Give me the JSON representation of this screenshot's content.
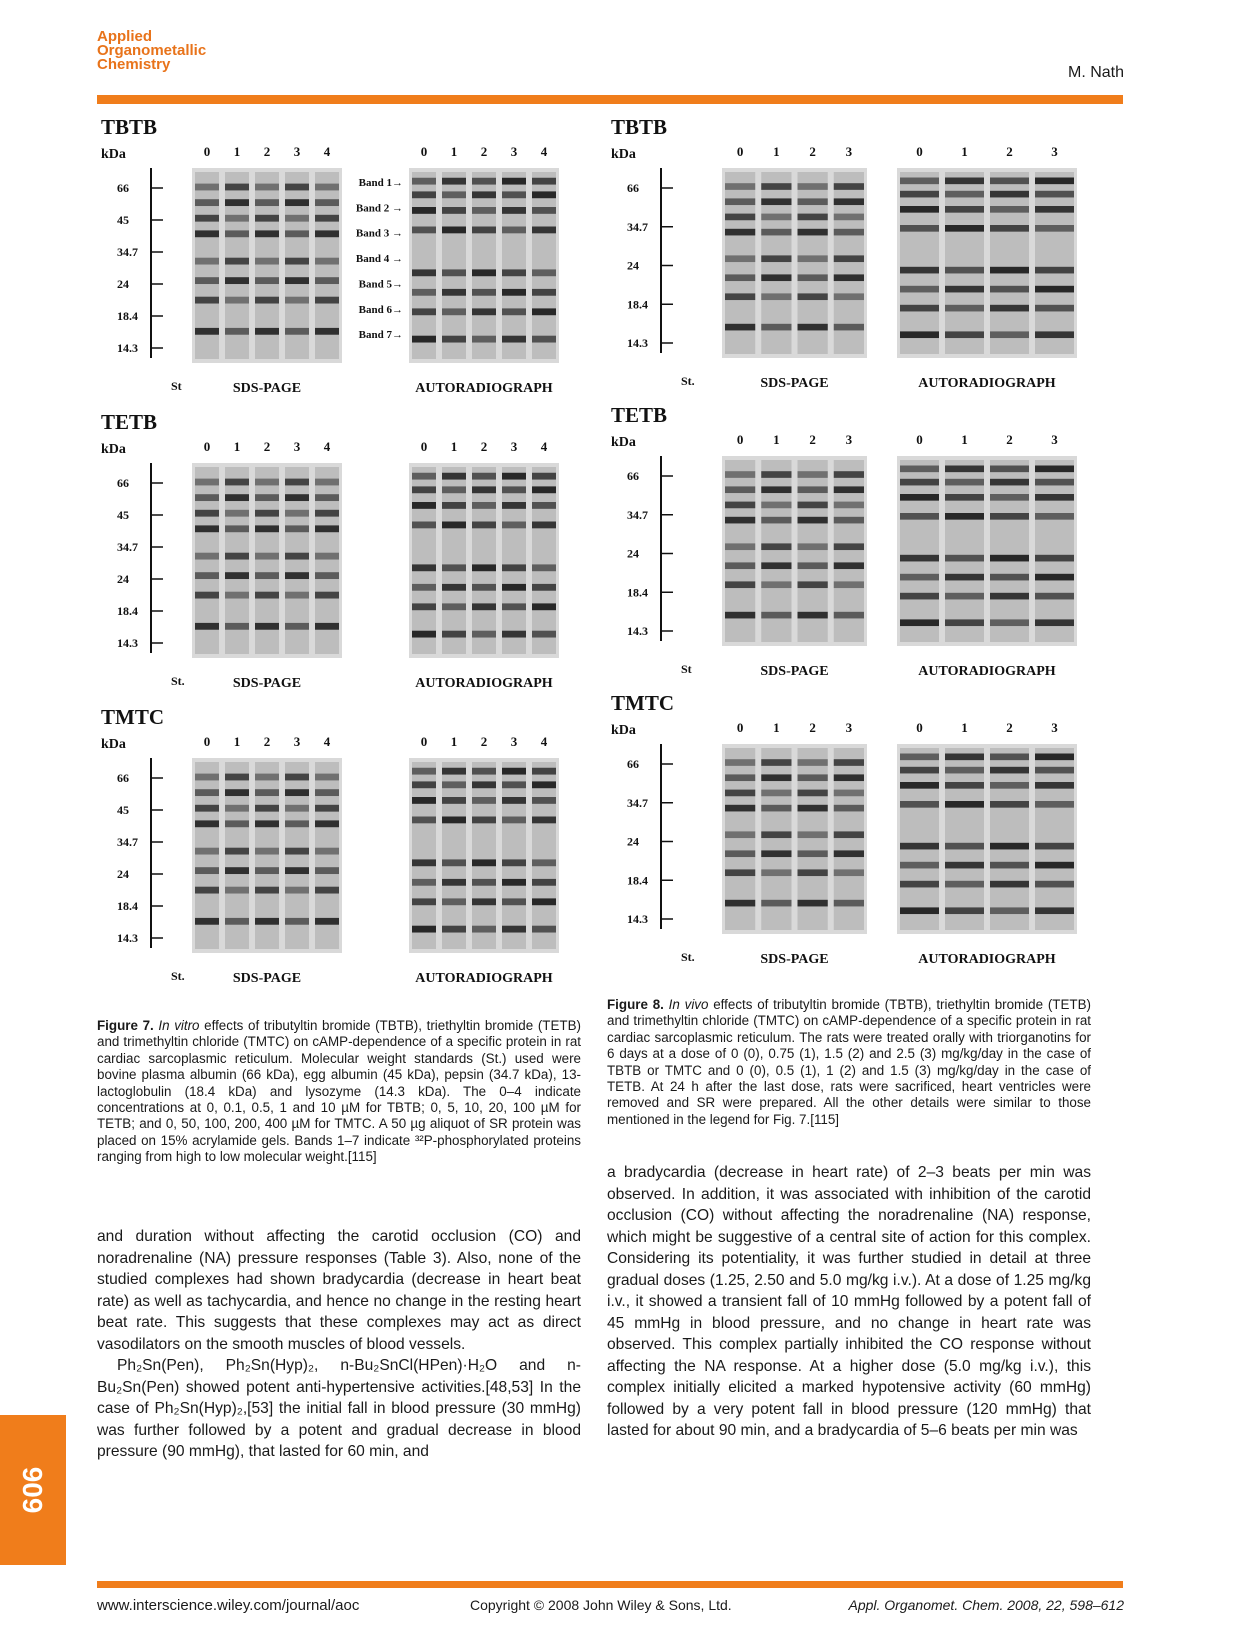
{
  "header": {
    "journal_logo": [
      "Applied",
      "Organometallic",
      "Chemistry"
    ],
    "author": "M. Nath"
  },
  "page_number": "606",
  "footer": {
    "url": "www.interscience.wiley.com/journal/aoc",
    "copyright": "Copyright © 2008 John Wiley & Sons, Ltd.",
    "citation": "Appl. Organomet. Chem. 2008, 22, 598–612"
  },
  "figure7": {
    "panels": [
      {
        "compound": "TBTB",
        "kda": "kDa",
        "markers": [
          "66",
          "45",
          "34.7",
          "24",
          "18.4",
          "14.3"
        ],
        "lanes": [
          "0",
          "1",
          "2",
          "3",
          "4"
        ],
        "bands": [
          "Band 1→",
          "Band 2 →",
          "Band 3 →",
          "Band 4 →",
          "Band 5→",
          "Band 6→",
          "Band 7→"
        ],
        "st": "St",
        "sds": "SDS-PAGE",
        "auto": "AUTORADIOGRAPH"
      },
      {
        "compound": "TETB",
        "kda": "kDa",
        "markers": [
          "66",
          "45",
          "34.7",
          "24",
          "18.4",
          "14.3"
        ],
        "lanes": [
          "0",
          "1",
          "2",
          "3",
          "4"
        ],
        "bands": [],
        "st": "St.",
        "sds": "SDS-PAGE",
        "auto": "AUTORADIOGRAPH"
      },
      {
        "compound": "TMTC",
        "kda": "kDa",
        "markers": [
          "66",
          "45",
          "34.7",
          "24",
          "18.4",
          "14.3"
        ],
        "lanes": [
          "0",
          "1",
          "2",
          "3",
          "4"
        ],
        "bands": [],
        "st": "St.",
        "sds": "SDS-PAGE",
        "auto": "AUTORADIOGRAPH"
      }
    ],
    "caption_label": "Figure 7.",
    "caption_invitro": "In vitro",
    "caption_text": " effects of tributyltin bromide (TBTB), triethyltin bromide (TETB) and trimethyltin chloride (TMTC) on cAMP-dependence of a specific protein in rat cardiac sarcoplasmic reticulum. Molecular weight standards (St.) used were bovine plasma albumin (66 kDa), egg albumin (45 kDa), pepsin (34.7 kDa), 13-lactoglobulin (18.4 kDa) and lysozyme (14.3 kDa). The 0–4 indicate concentrations at 0, 0.1, 0.5, 1 and 10 µM for TBTB; 0, 5, 10, 20, 100 µM for TETB; and 0, 50, 100, 200, 400 µM for TMTC. A 50 µg aliquot of SR protein was placed on 15% acrylamide gels. Bands 1–7 indicate ³²P-phosphorylated proteins ranging from high to low molecular weight.[115]"
  },
  "figure8": {
    "panels": [
      {
        "compound": "TBTB",
        "kda": "kDa",
        "markers": [
          "66",
          "34.7",
          "24",
          "18.4",
          "14.3"
        ],
        "lanes": [
          "0",
          "1",
          "2",
          "3"
        ],
        "st": "St.",
        "sds": "SDS-PAGE",
        "auto": "AUTORADIOGRAPH"
      },
      {
        "compound": "TETB",
        "kda": "kDa",
        "markers": [
          "66",
          "34.7",
          "24",
          "18.4",
          "14.3"
        ],
        "lanes": [
          "0",
          "1",
          "2",
          "3"
        ],
        "st": "St",
        "sds": "SDS-PAGE",
        "auto": "AUTORADIOGRAPH"
      },
      {
        "compound": "TMTC",
        "kda": "kDa",
        "markers": [
          "66",
          "34.7",
          "24",
          "18.4",
          "14.3"
        ],
        "lanes": [
          "0",
          "1",
          "2",
          "3"
        ],
        "st": "St.",
        "sds": "SDS-PAGE",
        "auto": "AUTORADIOGRAPH"
      }
    ],
    "caption_label": "Figure 8.",
    "caption_invivo": "In vivo",
    "caption_text": " effects of tributyltin bromide (TBTB), triethyltin bromide (TETB) and trimethyltin chloride (TMTC) on cAMP-dependence of a specific protein in rat cardiac sarcoplasmic reticulum. The rats were treated orally with triorganotins for 6 days at a dose of 0 (0), 0.75 (1), 1.5 (2) and 2.5 (3) mg/kg/day in the case of TBTB or TMTC and 0 (0), 0.5 (1), 1 (2) and 1.5 (3) mg/kg/day in the case of TETB. At 24 h after the last dose, rats were sacrificed, heart ventricles were removed and SR were prepared. All the other details were similar to those mentioned in the legend for Fig. 7.[115]"
  },
  "left_body": {
    "p1": "and duration without affecting the carotid occlusion (CO) and noradrenaline (NA) pressure responses (Table 3). Also, none of the studied complexes had shown bradycardia (decrease in heart beat rate) as well as tachycardia, and hence no change in the resting heart beat rate. This suggests that these complexes may act as direct vasodilators on the smooth muscles of blood vessels.",
    "p2": "Ph₂Sn(Pen), Ph₂Sn(Hyp)₂, n-Bu₂SnCl(HPen)·H₂O and n-Bu₂Sn(Pen) showed potent anti-hypertensive activities.[48,53] In the case of Ph₂Sn(Hyp)₂,[53] the initial fall in blood pressure (30 mmHg) was further followed by a potent and gradual decrease in blood pressure (90 mmHg), that lasted for 60 min, and"
  },
  "right_body": {
    "p1": "a bradycardia (decrease in heart rate) of 2–3 beats per min was observed. In addition, it was associated with inhibition of the carotid occlusion (CO) without affecting the noradrenaline (NA) response, which might be suggestive of a central site of action for this complex. Considering its potentiality, it was further studied in detail at three gradual doses (1.25, 2.50 and 5.0 mg/kg i.v.). At a dose of 1.25 mg/kg i.v., it showed a transient fall of 10 mmHg followed by a potent fall of 45 mmHg in blood pressure, and no change in heart rate was observed. This complex partially inhibited the CO response without affecting the NA response. At a higher dose (5.0 mg/kg i.v.), this complex initially elicited a marked hypotensive activity (60 mmHg) followed by a very potent fall in blood pressure (120 mmHg) that lasted for about 90 min, and a bradycardia of 5–6 beats per min was"
  }
}
